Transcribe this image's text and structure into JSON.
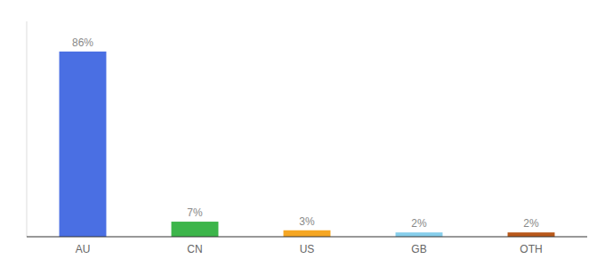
{
  "chart_data": {
    "type": "bar",
    "categories": [
      "AU",
      "CN",
      "US",
      "GB",
      "OTH"
    ],
    "values": [
      86,
      7,
      3,
      2,
      2
    ],
    "value_labels": [
      "86%",
      "7%",
      "3%",
      "2%",
      "2%"
    ],
    "colors": [
      "#4A6FE3",
      "#3CB54A",
      "#F5A623",
      "#87CEEB",
      "#B8581A"
    ],
    "ylim": [
      0,
      100
    ],
    "data_labels": true,
    "tick_labels": "x",
    "grid": false
  }
}
